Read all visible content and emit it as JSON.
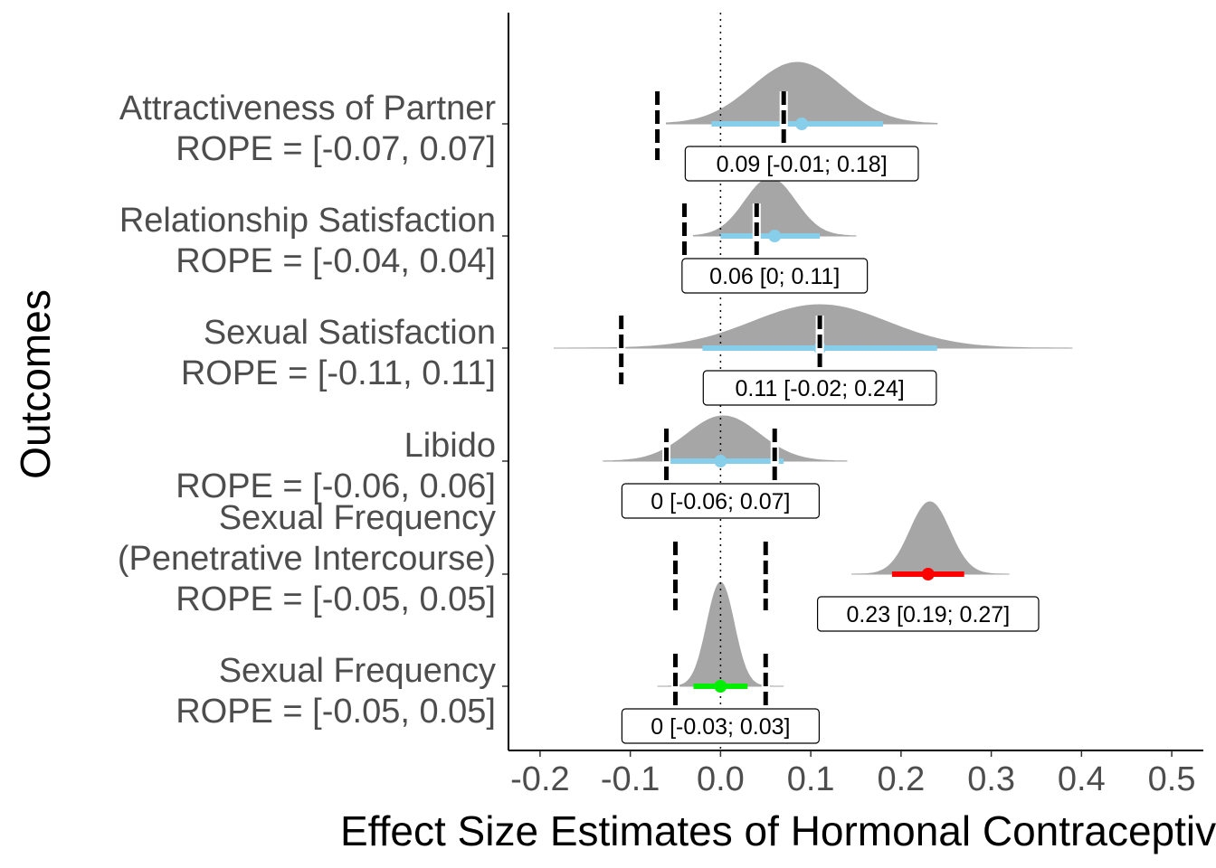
{
  "chart_data": {
    "type": "ridgeline-interval",
    "xlabel": "Effect Size Estimates of Hormonal Contraceptive",
    "ylabel": "Outcomes",
    "xlim": [
      -0.235,
      0.535
    ],
    "x_ticks": [
      "-0.2",
      "-0.1",
      "0.0",
      "0.1",
      "0.2",
      "0.3",
      "0.4",
      "0.5"
    ],
    "x_tick_values": [
      -0.2,
      -0.1,
      0.0,
      0.1,
      0.2,
      0.3,
      0.4,
      0.5
    ],
    "reference_line": 0,
    "grid": false,
    "legend": "none",
    "colors": {
      "density": "#a6a6a6",
      "interval_blue": "#87ceeb",
      "interval_red": "#ff0000",
      "interval_green": "#00ee00",
      "rope_line": "#000000"
    },
    "outcomes": [
      {
        "label_lines": [
          "Attractiveness of Partner",
          "ROPE = [-0.07, 0.07]"
        ],
        "rope": [
          -0.07,
          0.07
        ],
        "estimate": 0.09,
        "ci": [
          -0.01,
          0.18
        ],
        "annotation": "0.09 [-0.01; 0.18]",
        "interval_color": "#87ceeb",
        "density": {
          "mean": 0.085,
          "sd": 0.05,
          "range": [
            -0.06,
            0.24
          ]
        }
      },
      {
        "label_lines": [
          "Relationship Satisfaction",
          "ROPE = [-0.04, 0.04]"
        ],
        "rope": [
          -0.04,
          0.04
        ],
        "estimate": 0.06,
        "ci": [
          0,
          0.11
        ],
        "annotation": "0.06 [0; 0.11]",
        "interval_color": "#87ceeb",
        "density": {
          "mean": 0.055,
          "sd": 0.028,
          "range": [
            -0.03,
            0.15
          ]
        }
      },
      {
        "label_lines": [
          "Sexual Satisfaction",
          "ROPE = [-0.11, 0.11]"
        ],
        "rope": [
          -0.11,
          0.11
        ],
        "estimate": 0.11,
        "ci": [
          -0.02,
          0.24
        ],
        "annotation": "0.11 [-0.02; 0.24]",
        "interval_color": "#87ceeb",
        "density": {
          "mean": 0.11,
          "sd": 0.075,
          "range": [
            -0.185,
            0.39
          ]
        }
      },
      {
        "label_lines": [
          "Libido",
          "ROPE = [-0.06, 0.06]"
        ],
        "rope": [
          -0.06,
          0.06
        ],
        "estimate": 0,
        "ci": [
          -0.06,
          0.07
        ],
        "annotation": "0 [-0.06; 0.07]",
        "interval_color": "#87ceeb",
        "density": {
          "mean": 0.003,
          "sd": 0.04,
          "range": [
            -0.13,
            0.14
          ]
        }
      },
      {
        "label_lines": [
          "Sexual Frequency",
          "(Penetrative Intercourse)",
          "ROPE = [-0.05, 0.05]"
        ],
        "rope": [
          -0.05,
          0.05
        ],
        "estimate": 0.23,
        "ci": [
          0.19,
          0.27
        ],
        "annotation": "0.23 [0.19; 0.27]",
        "interval_color": "#ff0000",
        "density": {
          "mean": 0.232,
          "sd": 0.022,
          "range": [
            0.145,
            0.32
          ]
        }
      },
      {
        "label_lines": [
          "Sexual Frequency",
          "ROPE = [-0.05, 0.05]"
        ],
        "rope": [
          -0.05,
          0.05
        ],
        "estimate": 0,
        "ci": [
          -0.03,
          0.03
        ],
        "annotation": "0 [-0.03; 0.03]",
        "interval_color": "#00ee00",
        "density": {
          "mean": 0.0,
          "sd": 0.015,
          "range": [
            -0.07,
            0.07
          ]
        }
      }
    ]
  }
}
